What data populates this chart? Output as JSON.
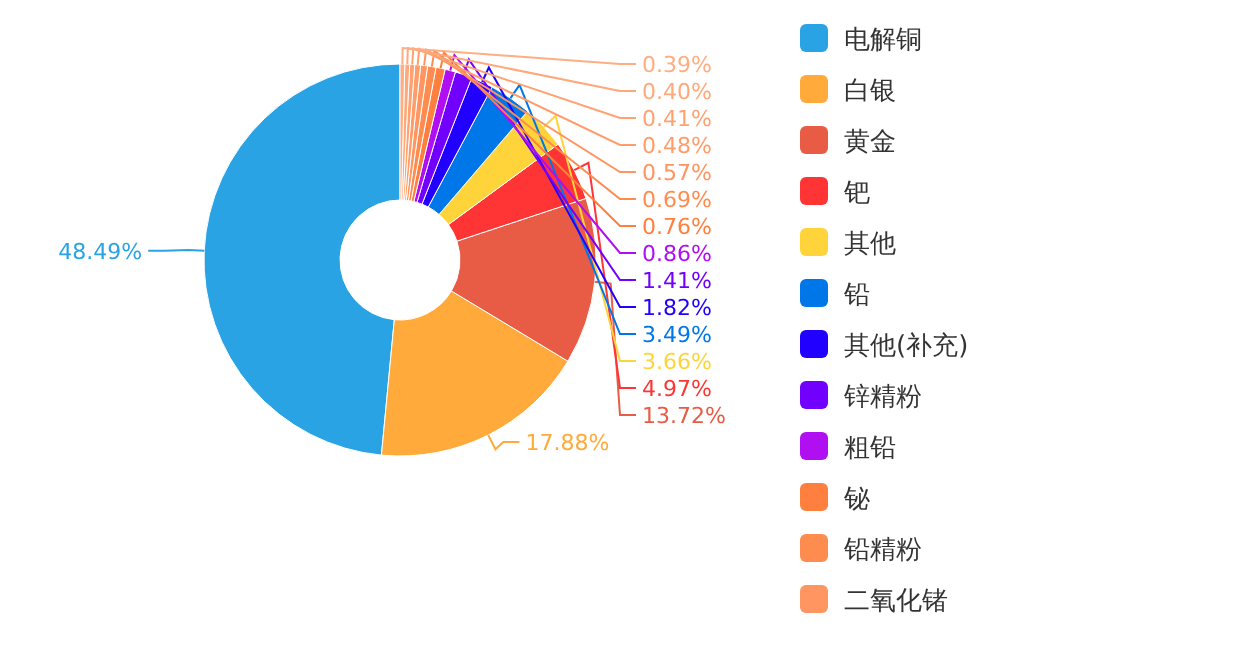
{
  "chart_data": {
    "type": "donut",
    "categories": [
      "电解铜",
      "白银",
      "黄金",
      "钯",
      "其他",
      "铅",
      "其他(补充)",
      "锌精粉",
      "粗铅",
      "铋",
      "铅精粉",
      "二氧化锗",
      null,
      null,
      null,
      null
    ],
    "values": [
      48.49,
      17.88,
      13.72,
      4.97,
      3.66,
      3.49,
      1.82,
      1.41,
      0.86,
      0.76,
      0.69,
      0.57,
      0.48,
      0.41,
      0.4,
      0.39
    ],
    "colors": [
      "#29a3e3",
      "#ffaa3b",
      "#e85c45",
      "#ff3535",
      "#ffd43b",
      "#0077e8",
      "#2200ff",
      "#7200ff",
      "#b00ff2",
      "#ff7f3f",
      "#ff8c4f",
      "#ff9560",
      "#ff9d6a",
      "#ffa272",
      "#ffa87a",
      "#ffad82"
    ],
    "value_labels": [
      "48.49%",
      "17.88%",
      "13.72%",
      "4.97%",
      "3.66%",
      "3.49%",
      "1.82%",
      "1.41%",
      "0.86%",
      "0.76%",
      "0.69%",
      "0.57%",
      "0.48%",
      "0.41%",
      "0.40%",
      "0.39%"
    ],
    "legend": "right"
  }
}
